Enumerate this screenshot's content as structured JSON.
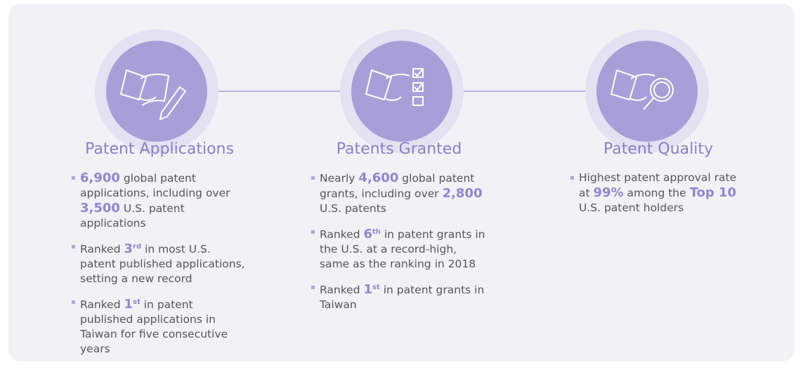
{
  "columns": [
    {
      "title": "Patent Applications",
      "bullets": [
        [
          "6,900",
          "global patent applications, including over",
          "3,500",
          "U.S. patent applications"
        ],
        [
          "Ranked",
          "3",
          "rd",
          "in most U.S. patent published applications, setting a new record"
        ],
        [
          "Ranked",
          "1",
          "st",
          "in patent published applications in Taiwan for five consecutive years"
        ]
      ]
    },
    {
      "title": "Patents Granted",
      "bullets": [
        [
          "Nearly",
          "4,600",
          "global patent grants, including over",
          "2,800",
          "U.S. patents"
        ],
        [
          "Ranked",
          "6",
          "th",
          "in patent grants in the U.S. at a record-high, same as the ranking in 2018"
        ],
        [
          "Ranked",
          "1",
          "st",
          "in patent grants in Taiwan"
        ]
      ]
    },
    {
      "title": "Patent Quality",
      "bullets": [
        [
          "Highest patent approval rate at",
          "99%",
          "among the",
          "Top 10",
          "U.S. patent holders"
        ]
      ]
    }
  ]
}
